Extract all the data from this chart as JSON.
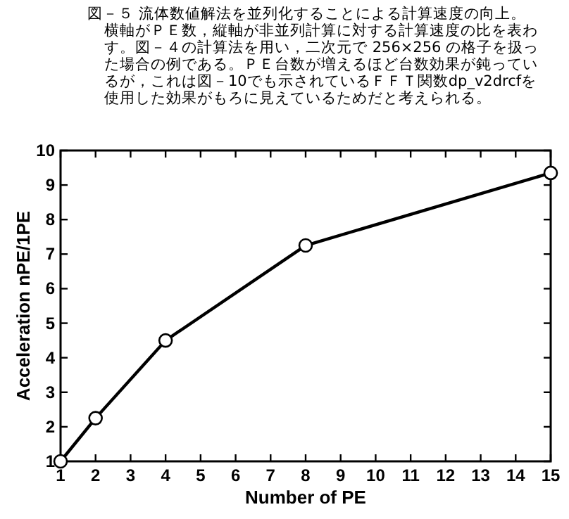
{
  "chart_data": {
    "type": "line",
    "title": "図－５ 流体数値解法を並列化することによる計算速度の向上。",
    "subtitle": "横軸がＰＥ数，縦軸が非並列計算に対する計算速度の比を表わす。図－４の計算法を用い，二次元で 256×256 の格子を扱った場合の例である。ＰＥ台数が増えるほど台数効果が鈍っているが，これは図－10でも示されているＦＦＴ関数dp_v2drcfを使用した効果がもろに見えているためだと考えられる。",
    "xlabel": "Number of PE",
    "ylabel": "Acceleration nPE/1PE",
    "x": [
      1,
      2,
      4,
      8,
      15
    ],
    "series": [
      {
        "color": "#000000",
        "values": [
          1,
          2.25,
          4.5,
          7.25,
          9.35
        ]
      }
    ],
    "xlim": [
      1,
      15
    ],
    "xticks": [
      1,
      2,
      3,
      4,
      5,
      6,
      7,
      8,
      9,
      10,
      11,
      12,
      13,
      14,
      15
    ],
    "ylim": [
      1,
      10
    ],
    "yticks": [
      1,
      2,
      3,
      4,
      5,
      6,
      7,
      8,
      9,
      10
    ],
    "marker": "circle",
    "line_style": "solid"
  }
}
